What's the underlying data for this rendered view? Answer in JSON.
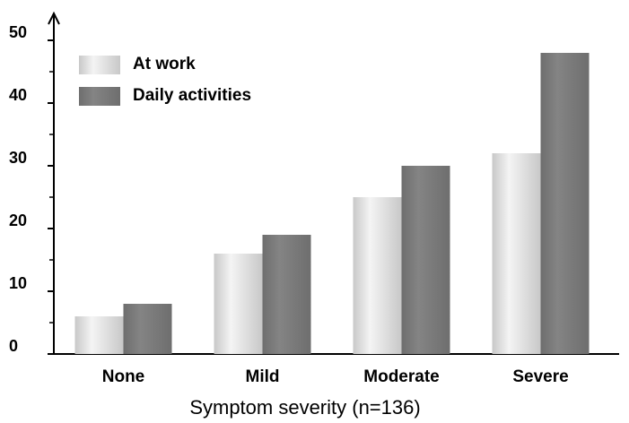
{
  "chart_data": {
    "type": "bar",
    "x_label": "Symptom severity (n=136)",
    "categories": [
      "None",
      "Mild",
      "Moderate",
      "Severe"
    ],
    "series": [
      {
        "name": "At work",
        "color": "#c8c8c8",
        "values": [
          6,
          16,
          25,
          32
        ]
      },
      {
        "name": "Daily activities",
        "color": "#6e6e6e",
        "values": [
          8,
          19,
          30,
          48
        ]
      }
    ],
    "ylim": [
      0,
      54
    ],
    "yticks": [
      0,
      10,
      20,
      30,
      40,
      50
    ],
    "minor_yticks": [
      5,
      15,
      25,
      35,
      45
    ],
    "legend": "upper left",
    "grid": false
  }
}
